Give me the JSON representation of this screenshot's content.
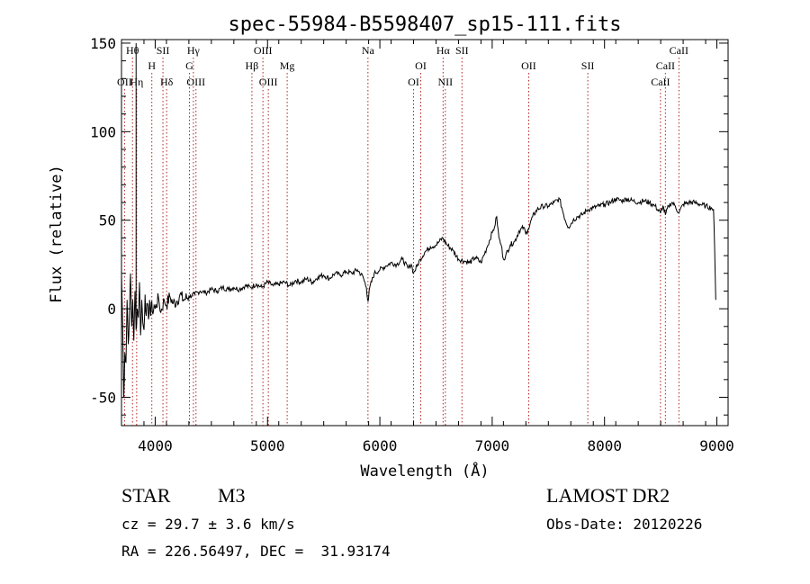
{
  "chart_data": {
    "type": "line",
    "title": "spec-55984-B5598407_sp15-111.fits",
    "xlabel": "Wavelength (Å)",
    "ylabel": "Flux (relative)",
    "xlim": [
      3700,
      9100
    ],
    "ylim": [
      -66,
      152
    ],
    "x_ticks": [
      4000,
      5000,
      6000,
      7000,
      8000,
      9000
    ],
    "y_ticks": [
      -50,
      0,
      50,
      100,
      150
    ],
    "line_color": "#000000",
    "marker_color": "#b22222",
    "grid": false,
    "series": [
      {
        "values": [
          [
            3700,
            20
          ],
          [
            3710,
            -8
          ],
          [
            3720,
            -50
          ],
          [
            3730,
            -25
          ],
          [
            3740,
            -30
          ],
          [
            3750,
            5
          ],
          [
            3760,
            -20
          ],
          [
            3770,
            -5
          ],
          [
            3780,
            20
          ],
          [
            3790,
            -10
          ],
          [
            3800,
            5
          ],
          [
            3810,
            -18
          ],
          [
            3820,
            10
          ],
          [
            3830,
            -12
          ],
          [
            3840,
            0
          ],
          [
            3850,
            -5
          ],
          [
            3860,
            15
          ],
          [
            3870,
            -15
          ],
          [
            3880,
            5
          ],
          [
            3890,
            -8
          ],
          [
            3900,
            -12
          ],
          [
            3910,
            8
          ],
          [
            3920,
            -4
          ],
          [
            3930,
            3
          ],
          [
            3940,
            -6
          ],
          [
            3950,
            5
          ],
          [
            3960,
            -4
          ],
          [
            3970,
            4
          ],
          [
            3980,
            -3
          ],
          [
            3990,
            2
          ],
          [
            4000,
            0
          ],
          [
            4030,
            6
          ],
          [
            4050,
            -2
          ],
          [
            4080,
            5
          ],
          [
            4100,
            2
          ],
          [
            4130,
            7
          ],
          [
            4160,
            3
          ],
          [
            4190,
            4
          ],
          [
            4220,
            8
          ],
          [
            4250,
            5
          ],
          [
            4300,
            7
          ],
          [
            4350,
            8
          ],
          [
            4400,
            10
          ],
          [
            4450,
            9
          ],
          [
            4500,
            11
          ],
          [
            4550,
            10
          ],
          [
            4600,
            12
          ],
          [
            4650,
            11
          ],
          [
            4700,
            12
          ],
          [
            4750,
            11
          ],
          [
            4800,
            13
          ],
          [
            4850,
            12
          ],
          [
            4900,
            14
          ],
          [
            4950,
            12
          ],
          [
            5000,
            15
          ],
          [
            5050,
            13
          ],
          [
            5100,
            14
          ],
          [
            5150,
            15
          ],
          [
            5200,
            13
          ],
          [
            5250,
            16
          ],
          [
            5300,
            15
          ],
          [
            5350,
            17
          ],
          [
            5400,
            15
          ],
          [
            5450,
            18
          ],
          [
            5500,
            19
          ],
          [
            5550,
            17
          ],
          [
            5600,
            20
          ],
          [
            5650,
            19
          ],
          [
            5700,
            21
          ],
          [
            5750,
            20
          ],
          [
            5800,
            22
          ],
          [
            5850,
            18
          ],
          [
            5880,
            12
          ],
          [
            5895,
            4
          ],
          [
            5910,
            12
          ],
          [
            5950,
            20
          ],
          [
            6000,
            22
          ],
          [
            6050,
            24
          ],
          [
            6100,
            26
          ],
          [
            6150,
            25
          ],
          [
            6200,
            28
          ],
          [
            6250,
            23
          ],
          [
            6280,
            25
          ],
          [
            6300,
            20
          ],
          [
            6330,
            24
          ],
          [
            6360,
            28
          ],
          [
            6400,
            32
          ],
          [
            6450,
            35
          ],
          [
            6500,
            36
          ],
          [
            6530,
            38
          ],
          [
            6560,
            40
          ],
          [
            6600,
            36
          ],
          [
            6650,
            33
          ],
          [
            6700,
            28
          ],
          [
            6750,
            27
          ],
          [
            6800,
            26
          ],
          [
            6850,
            29
          ],
          [
            6900,
            26
          ],
          [
            6950,
            34
          ],
          [
            7000,
            43
          ],
          [
            7020,
            46
          ],
          [
            7040,
            52
          ],
          [
            7060,
            40
          ],
          [
            7080,
            36
          ],
          [
            7100,
            28
          ],
          [
            7120,
            30
          ],
          [
            7160,
            36
          ],
          [
            7200,
            38
          ],
          [
            7240,
            44
          ],
          [
            7280,
            46
          ],
          [
            7300,
            42
          ],
          [
            7320,
            45
          ],
          [
            7360,
            52
          ],
          [
            7400,
            56
          ],
          [
            7450,
            58
          ],
          [
            7500,
            58
          ],
          [
            7550,
            60
          ],
          [
            7600,
            62
          ],
          [
            7620,
            57
          ],
          [
            7650,
            50
          ],
          [
            7680,
            46
          ],
          [
            7720,
            50
          ],
          [
            7760,
            52
          ],
          [
            7800,
            53
          ],
          [
            7850,
            56
          ],
          [
            7900,
            57
          ],
          [
            7950,
            58
          ],
          [
            8000,
            59
          ],
          [
            8050,
            60
          ],
          [
            8100,
            62
          ],
          [
            8150,
            61
          ],
          [
            8200,
            62
          ],
          [
            8250,
            61
          ],
          [
            8300,
            60
          ],
          [
            8350,
            61
          ],
          [
            8400,
            60
          ],
          [
            8450,
            58
          ],
          [
            8498,
            54
          ],
          [
            8520,
            58
          ],
          [
            8542,
            53
          ],
          [
            8570,
            58
          ],
          [
            8600,
            60
          ],
          [
            8630,
            58
          ],
          [
            8662,
            54
          ],
          [
            8700,
            59
          ],
          [
            8750,
            60
          ],
          [
            8800,
            60
          ],
          [
            8850,
            59
          ],
          [
            8900,
            58
          ],
          [
            8950,
            57
          ],
          [
            8970,
            56
          ],
          [
            8980,
            35
          ],
          [
            8990,
            5
          ]
        ]
      }
    ],
    "spike": {
      "x": 3830,
      "y_top": 150,
      "y_bottom": -8
    },
    "lines": [
      {
        "label": "Hθ",
        "wave": 3798,
        "row": 1
      },
      {
        "label": "H",
        "wave": 3970,
        "row": 2
      },
      {
        "label": "SII",
        "wave": 4069,
        "row": 1
      },
      {
        "label": "Hγ",
        "wave": 4340,
        "row": 1
      },
      {
        "label": "G",
        "wave": 4305,
        "row": 2
      },
      {
        "label": "OIII",
        "wave": 4363,
        "row": 3
      },
      {
        "label": "Hδ",
        "wave": 4102,
        "row": 3
      },
      {
        "label": "OII",
        "wave": 3727,
        "row": 3
      },
      {
        "label": "Hη",
        "wave": 3835,
        "row": 3
      },
      {
        "label": "OIII",
        "wave": 4959,
        "row": 1
      },
      {
        "label": "Hβ",
        "wave": 4861,
        "row": 2
      },
      {
        "label": "Mg",
        "wave": 5175,
        "row": 2
      },
      {
        "label": "OIII",
        "wave": 5007,
        "row": 3
      },
      {
        "label": "Na",
        "wave": 5894,
        "row": 1
      },
      {
        "label": "OI",
        "wave": 6364,
        "row": 2
      },
      {
        "label": "OI",
        "wave": 6300,
        "row": 3
      },
      {
        "label": "Hα",
        "wave": 6563,
        "row": 1
      },
      {
        "label": "SII",
        "wave": 6731,
        "row": 1
      },
      {
        "label": "NII",
        "wave": 6583,
        "row": 3
      },
      {
        "label": "OII",
        "wave": 7325,
        "row": 2
      },
      {
        "label": "SII",
        "wave": 7851,
        "row": 2
      },
      {
        "label": "CaII",
        "wave": 8662,
        "row": 1
      },
      {
        "label": "CaII",
        "wave": 8542,
        "row": 2
      },
      {
        "label": "CaII",
        "wave": 8498,
        "row": 3
      }
    ]
  },
  "footer": {
    "object_type": "STAR",
    "subclass": "M3",
    "redshift": "cz = 29.7 ± 3.6 km/s",
    "coords": "RA = 226.56497, DEC =  31.93174",
    "survey": "LAMOST DR2",
    "obs_date": "Obs-Date: 20120226"
  }
}
